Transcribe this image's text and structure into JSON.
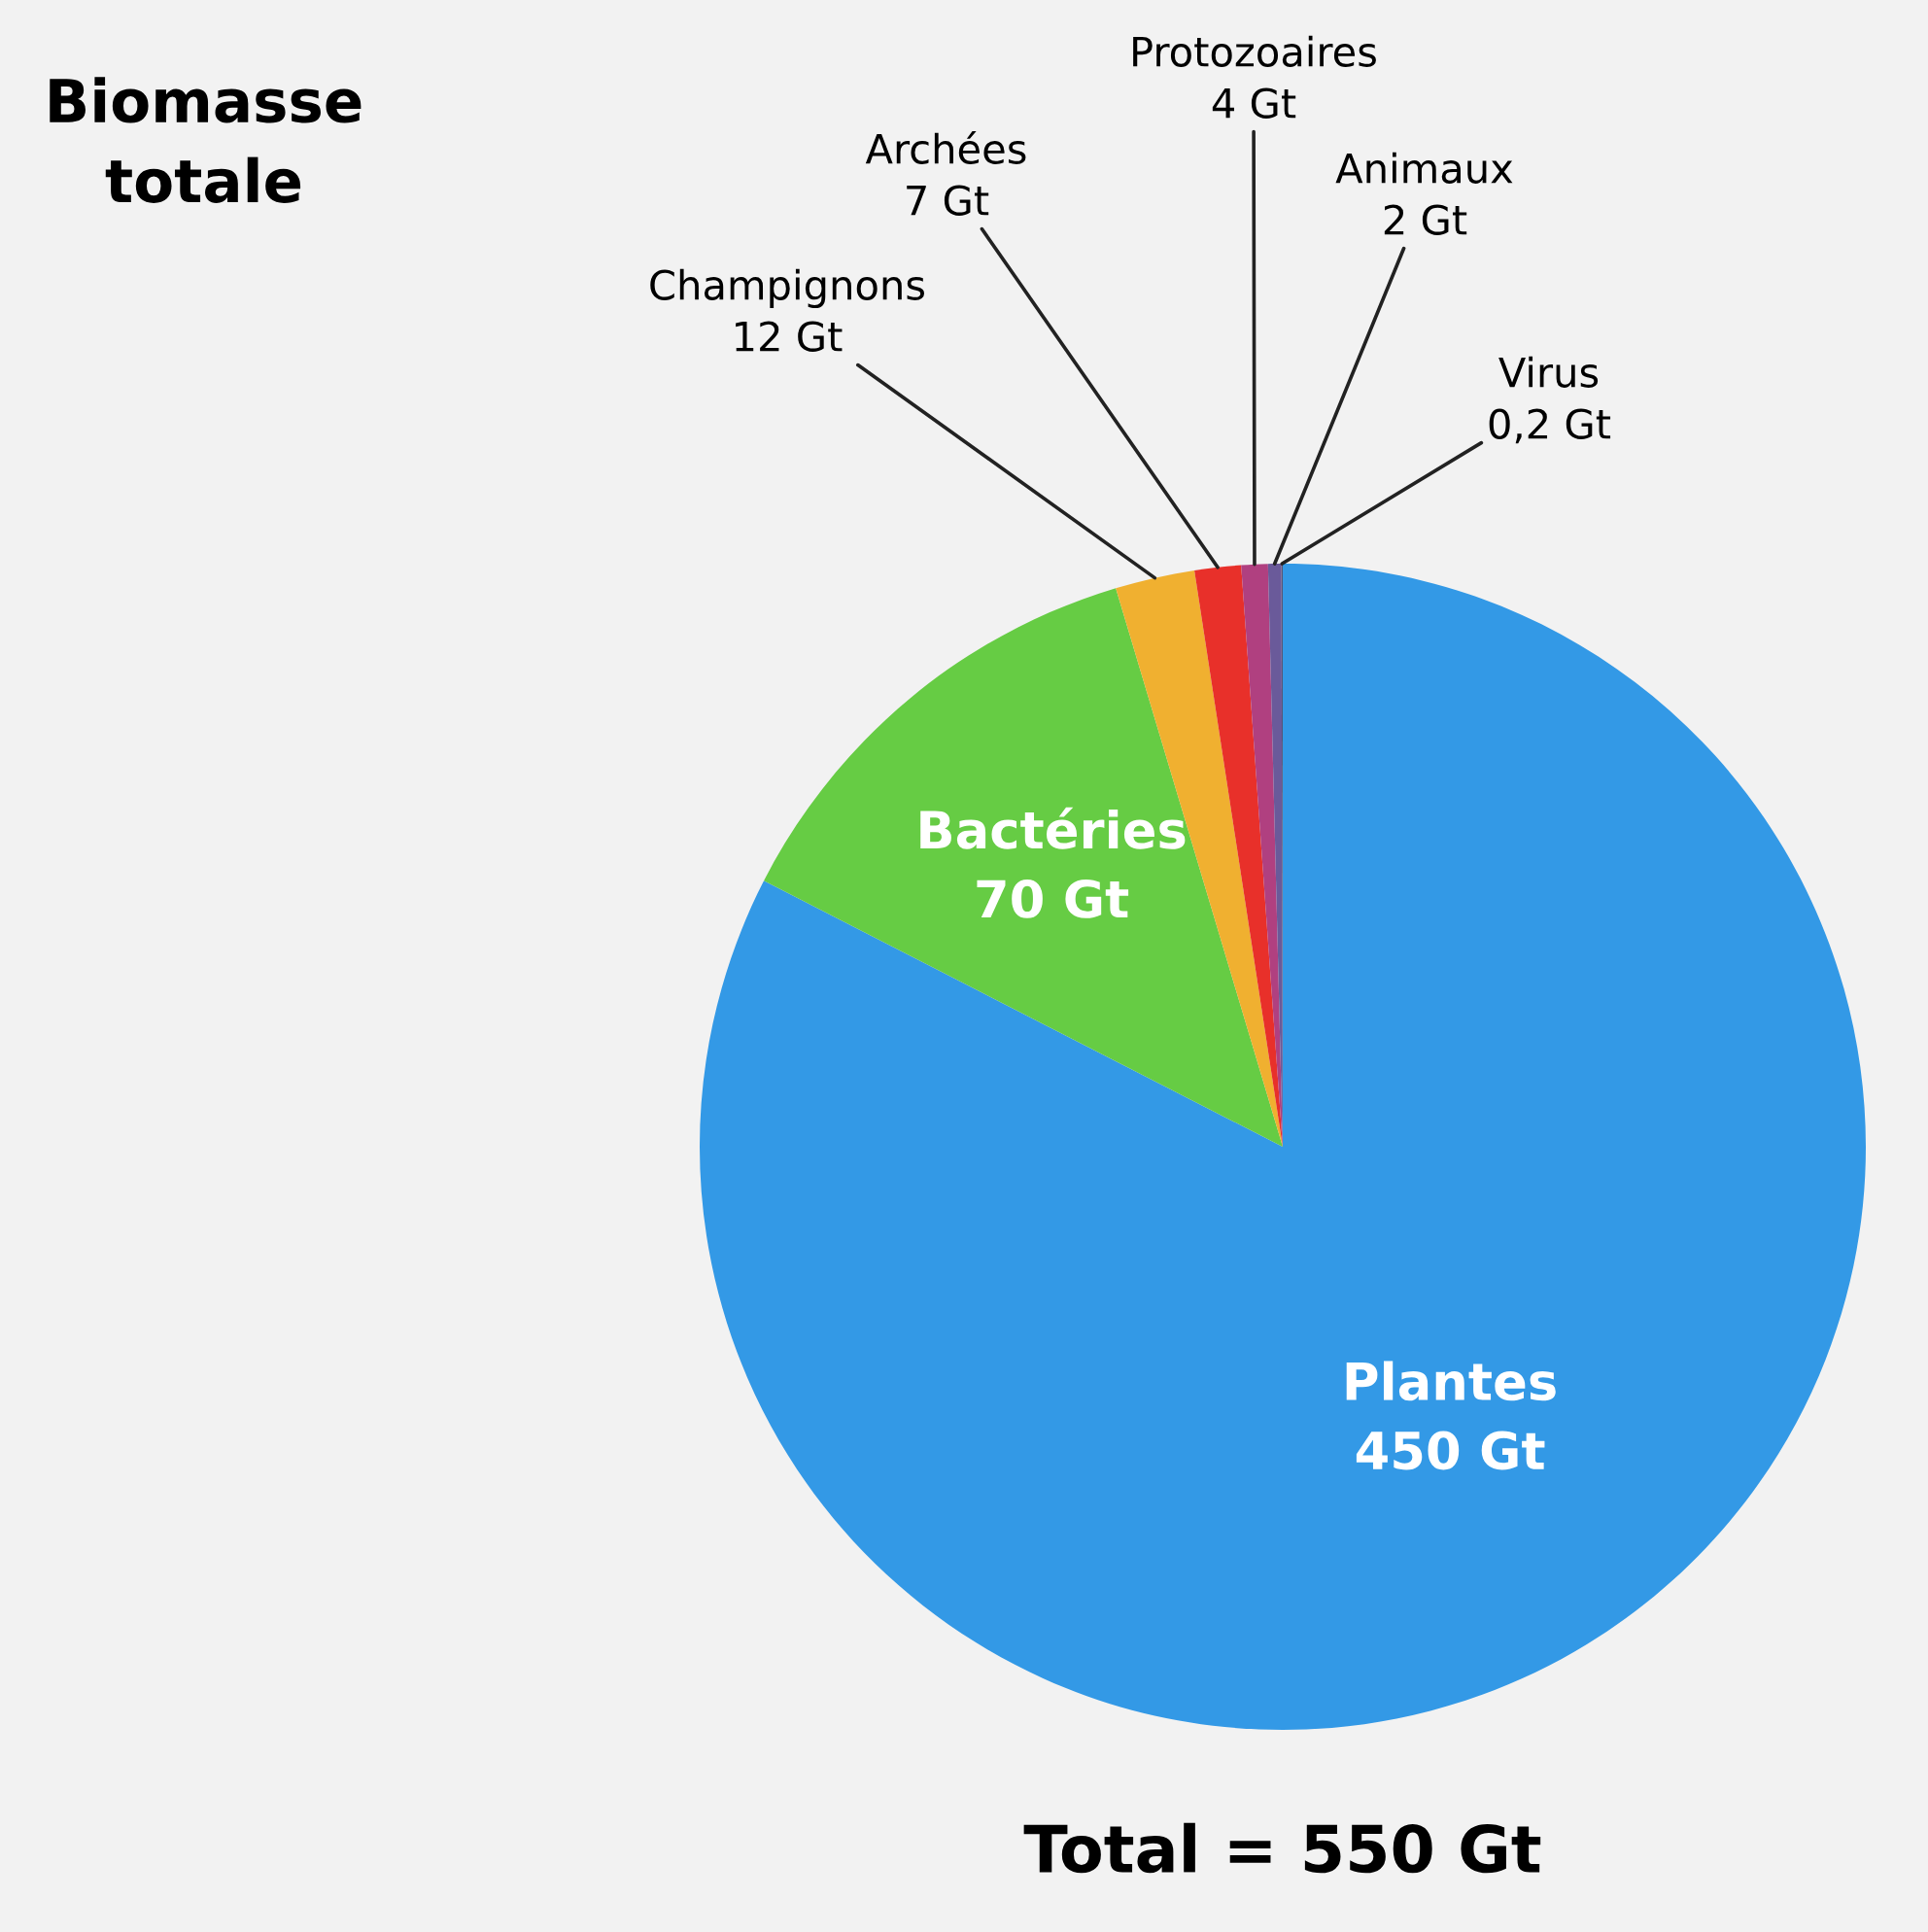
{
  "chart_data": {
    "type": "pie",
    "title": "Biomasse totale",
    "categories": [
      "Plantes",
      "Bactéries",
      "Champignons",
      "Archées",
      "Protozoaires",
      "Animaux",
      "Virus"
    ],
    "values": [
      450,
      70,
      12,
      7,
      4,
      2,
      0.2
    ],
    "colors": [
      "#3399e6",
      "#66cc44",
      "#f0b030",
      "#e8302a",
      "#b04080",
      "#6a5a9a",
      "#555577"
    ],
    "value_labels": [
      "450 Gt",
      "70 Gt",
      "12 Gt",
      "7 Gt",
      "4 Gt",
      "2 Gt",
      "0,2 Gt"
    ],
    "annotations": [
      "Total = 550 Gt"
    ]
  }
}
